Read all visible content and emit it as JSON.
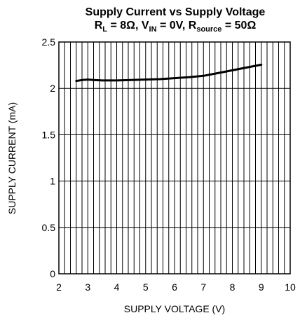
{
  "chart_data": {
    "type": "line",
    "title_line1": "Supply Current vs Supply Voltage",
    "title_line2": {
      "r_main": "R",
      "r_sub": "L",
      "r_rest": " = 8Ω, ",
      "v_main": "V",
      "v_sub": "IN",
      "v_rest": " = 0V, ",
      "s_main": "R",
      "s_sub": "source",
      "s_rest": " = 50Ω"
    },
    "xlabel": "SUPPLY VOLTAGE (V)",
    "ylabel": "SUPPLY CURRENT (mA)",
    "xlim": [
      2,
      10
    ],
    "ylim": [
      0,
      2.5
    ],
    "xticks": [
      "2",
      "3",
      "4",
      "5",
      "6",
      "7",
      "8",
      "9",
      "10"
    ],
    "yticks": [
      "0",
      "0.5",
      "1",
      "1.5",
      "2",
      "2.5"
    ],
    "grid": true,
    "series": [
      {
        "x": [
          2.6,
          2.8,
          3.0,
          3.2,
          3.5,
          4.0,
          4.5,
          5.0,
          5.5,
          6.0,
          6.5,
          7.0,
          7.5,
          8.0,
          8.5,
          9.0
        ],
        "y": [
          2.08,
          2.09,
          2.095,
          2.09,
          2.085,
          2.085,
          2.09,
          2.095,
          2.1,
          2.11,
          2.12,
          2.135,
          2.165,
          2.195,
          2.225,
          2.255
        ],
        "color": "#000000"
      }
    ]
  }
}
